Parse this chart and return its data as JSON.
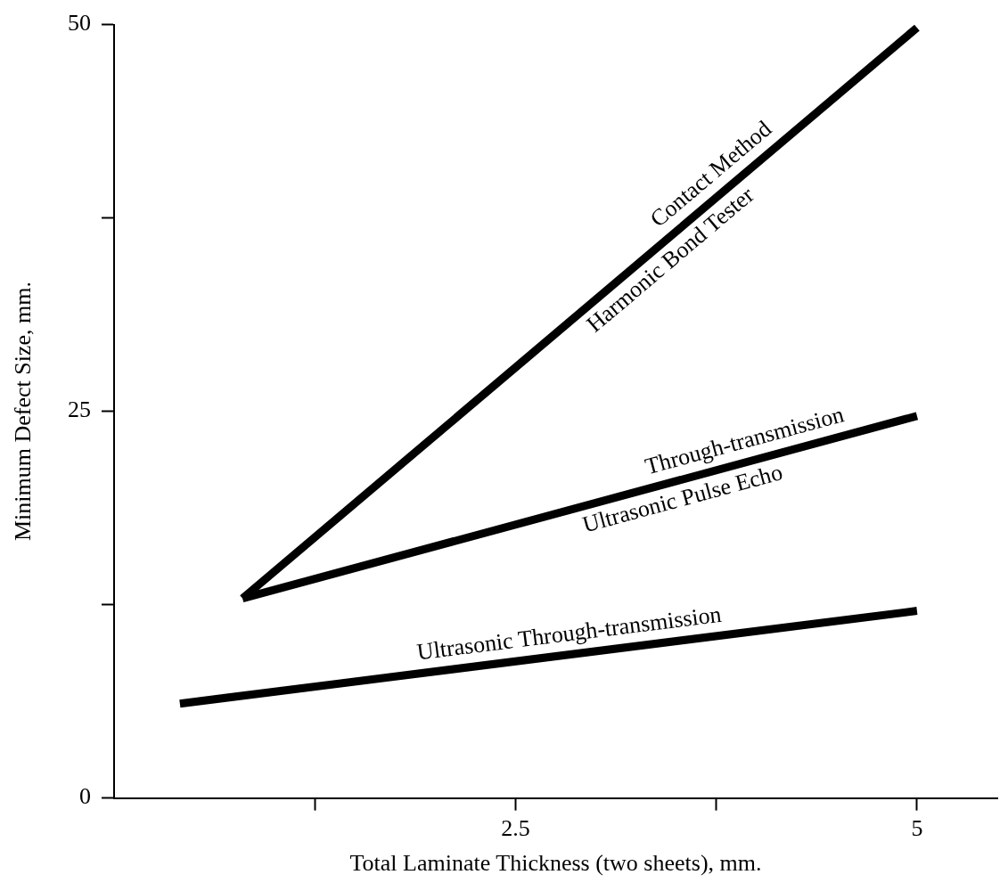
{
  "chart_data": {
    "type": "line",
    "xlabel": "Total Laminate Thickness (two sheets), mm.",
    "ylabel": "Minimum Defect Size, mm.",
    "xlim": [
      0,
      5.5
    ],
    "xticks": [
      {
        "value": 1.25,
        "label": null
      },
      2.5,
      {
        "value": 3.75,
        "label": null
      },
      5
    ],
    "ylim": [
      0,
      50
    ],
    "yticks": [
      0,
      {
        "value": 12.5,
        "label": null
      },
      25,
      {
        "value": 37.5,
        "label": null
      },
      50
    ],
    "grid": false,
    "legend": false,
    "marker": "none",
    "line_style": "solid",
    "series": [
      {
        "color": "#000000",
        "x": [
          0.8,
          5
        ],
        "values": [
          12.9,
          49.8
        ]
      },
      {
        "color": "#000000",
        "x": [
          0.8,
          5
        ],
        "values": [
          12.9,
          24.7
        ]
      },
      {
        "color": "#000000",
        "x": [
          0.41,
          5
        ],
        "values": [
          6.1,
          12.1
        ]
      }
    ],
    "annotations": [
      {
        "text": "Contact Method",
        "x": 3.8,
        "y": 39.3
      },
      {
        "text": "Harmonic Bond Tester",
        "x": 3.39,
        "y": 35.7
      },
      {
        "text": "Through-transmission",
        "x": 3.96,
        "y": 21.8
      },
      {
        "text": "Ultrasonic Pulse Echo",
        "x": 3.51,
        "y": 20.5
      },
      {
        "text": "Ultrasonic Through-transmission",
        "x": 2.85,
        "y": 9.3
      }
    ]
  }
}
